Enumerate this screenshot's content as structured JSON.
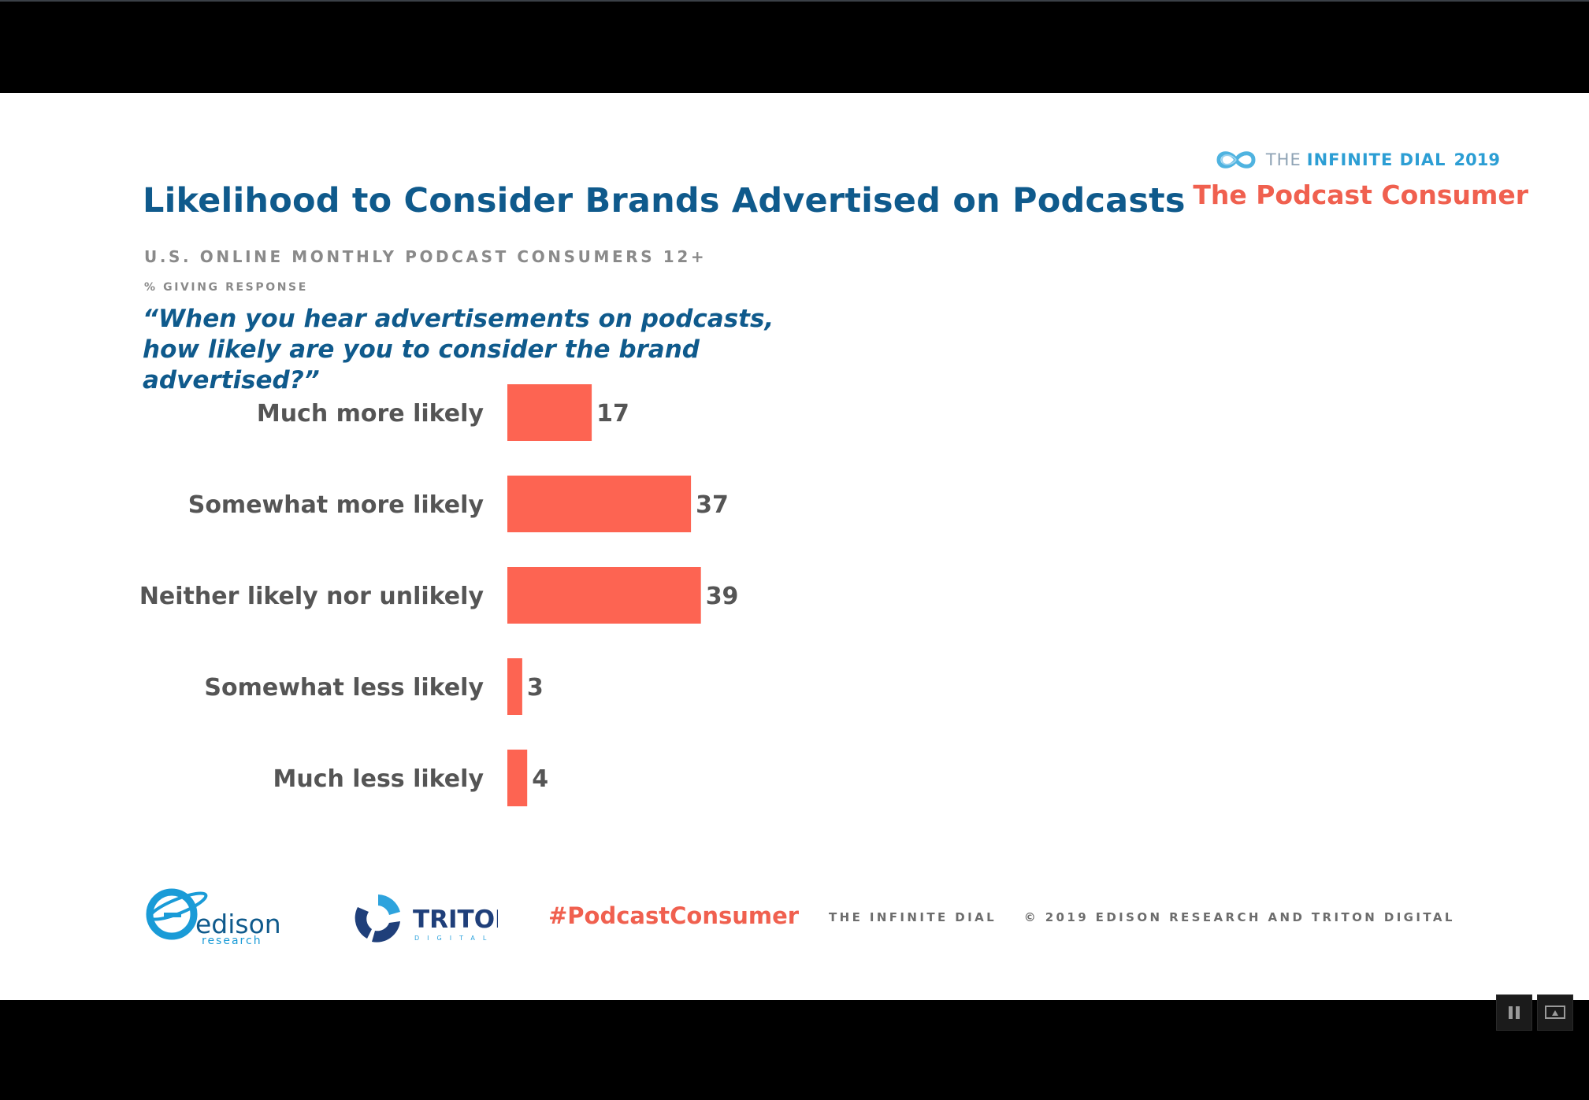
{
  "slide": {
    "title": "Likelihood to Consider Brands Advertised on Podcasts",
    "subtitle": "U.S. ONLINE MONTHLY PODCAST CONSUMERS 12+",
    "measure_label": "% GIVING RESPONSE",
    "question": "“When you hear advertisements on podcasts, how likely are you to consider the brand advertised?”"
  },
  "brand": {
    "prefix": "THE",
    "name": "INFINITE DIAL",
    "year": "2019",
    "tagline": "The Podcast Consumer"
  },
  "chart_data": {
    "type": "bar",
    "orientation": "horizontal",
    "categories": [
      "Much more likely",
      "Somewhat more likely",
      "Neither likely nor unlikely",
      "Somewhat less likely",
      "Much less likely"
    ],
    "values": [
      17,
      37,
      39,
      3,
      4
    ],
    "xlim": [
      0,
      100
    ],
    "grid": false,
    "bar_color": "#fd6452",
    "data_labels": true
  },
  "footer": {
    "edison_logo_word": "edison",
    "edison_logo_sub": "research",
    "triton_logo_word": "TRITON",
    "triton_logo_sub": "DIGITAL",
    "hashtag": "#PodcastConsumer",
    "left_text": "THE INFINITE DIAL",
    "right_text": "© 2019 EDISON RESEARCH AND TRITON DIGITAL"
  },
  "colors": {
    "title": "#0f5a8c",
    "accent": "#f0604f",
    "bar": "#fd6452",
    "muted": "#8a8a8a"
  },
  "player_controls": [
    "pause-icon",
    "screen-icon"
  ]
}
